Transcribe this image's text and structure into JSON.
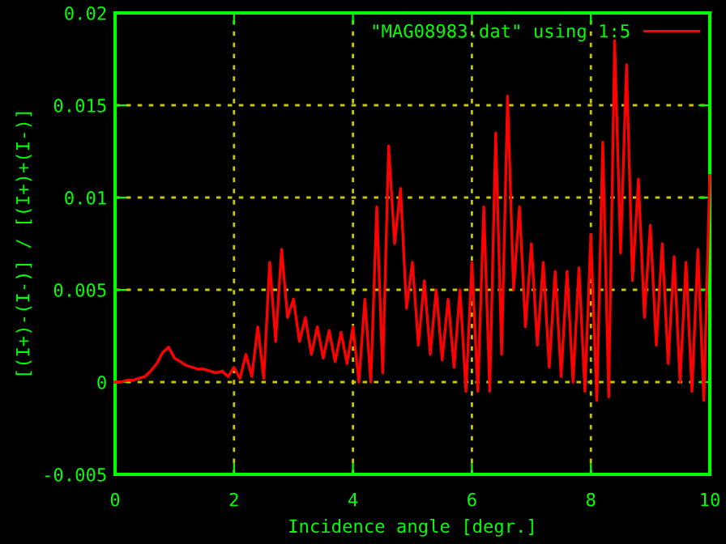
{
  "chart_data": {
    "type": "line",
    "xlabel": "Incidence angle [degr.]",
    "ylabel": "[(I+)-(I-)] / [(I+)+(I-)]",
    "x": [
      0,
      0.1,
      0.2,
      0.3,
      0.4,
      0.5,
      0.6,
      0.7,
      0.8,
      0.9,
      1.0,
      1.1,
      1.2,
      1.3,
      1.4,
      1.5,
      1.6,
      1.7,
      1.8,
      1.9,
      2.0,
      2.1,
      2.2,
      2.3,
      2.4,
      2.5,
      2.6,
      2.7,
      2.8,
      2.9,
      3.0,
      3.1,
      3.2,
      3.3,
      3.4,
      3.5,
      3.6,
      3.7,
      3.8,
      3.9,
      4.0,
      4.1,
      4.2,
      4.3,
      4.4,
      4.5,
      4.6,
      4.7,
      4.8,
      4.9,
      5.0,
      5.1,
      5.2,
      5.3,
      5.4,
      5.5,
      5.6,
      5.7,
      5.8,
      5.9,
      6.0,
      6.1,
      6.2,
      6.3,
      6.4,
      6.5,
      6.6,
      6.7,
      6.8,
      6.9,
      7.0,
      7.1,
      7.2,
      7.3,
      7.4,
      7.5,
      7.6,
      7.7,
      7.8,
      7.9,
      8.0,
      8.1,
      8.2,
      8.3,
      8.4,
      8.5,
      8.6,
      8.7,
      8.8,
      8.9,
      9.0,
      9.1,
      9.2,
      9.3,
      9.4,
      9.5,
      9.6,
      9.7,
      9.8,
      9.9,
      10.0
    ],
    "series": [
      {
        "name": "\"MAG08983.dat\" using 1:5",
        "color": "#ff0000",
        "values": [
          0,
          0,
          0.0001,
          0.0001,
          0.0002,
          0.0003,
          0.0006,
          0.001,
          0.0016,
          0.0019,
          0.0013,
          0.0011,
          0.0009,
          0.0008,
          0.0007,
          0.0007,
          0.0006,
          0.0005,
          0.0006,
          0.0003,
          0.0008,
          0.0002,
          0.0015,
          0.0003,
          0.003,
          0.0002,
          0.0065,
          0.0022,
          0.0072,
          0.0035,
          0.0045,
          0.0022,
          0.0035,
          0.0015,
          0.003,
          0.0013,
          0.0028,
          0.0011,
          0.0027,
          0.001,
          0.003,
          0.0,
          0.0045,
          0.0,
          0.0095,
          0.0005,
          0.0128,
          0.0075,
          0.0105,
          0.004,
          0.0065,
          0.002,
          0.0055,
          0.0015,
          0.005,
          0.0012,
          0.0045,
          0.0008,
          0.005,
          -0.0005,
          0.0065,
          -0.0005,
          0.0095,
          -0.0005,
          0.0135,
          0.0015,
          0.0155,
          0.005,
          0.0095,
          0.003,
          0.0075,
          0.002,
          0.0065,
          0.0008,
          0.006,
          0.0003,
          0.006,
          0.0,
          0.0062,
          -0.0005,
          0.008,
          -0.001,
          0.013,
          -0.0008,
          0.0185,
          0.007,
          0.0172,
          0.0055,
          0.011,
          0.0035,
          0.0085,
          0.002,
          0.0075,
          0.001,
          0.0068,
          0.0,
          0.0065,
          -0.0005,
          0.0072,
          -0.001,
          0.0112
        ]
      }
    ],
    "xlim": [
      0,
      10
    ],
    "ylim": [
      -0.005,
      0.02
    ],
    "xticks": [
      0,
      2,
      4,
      6,
      8,
      10
    ],
    "yticks": [
      -0.005,
      0,
      0.005,
      0.01,
      0.015,
      0.02
    ],
    "grid": true,
    "legend": "top right",
    "marker": "none",
    "line_style": "solid"
  }
}
